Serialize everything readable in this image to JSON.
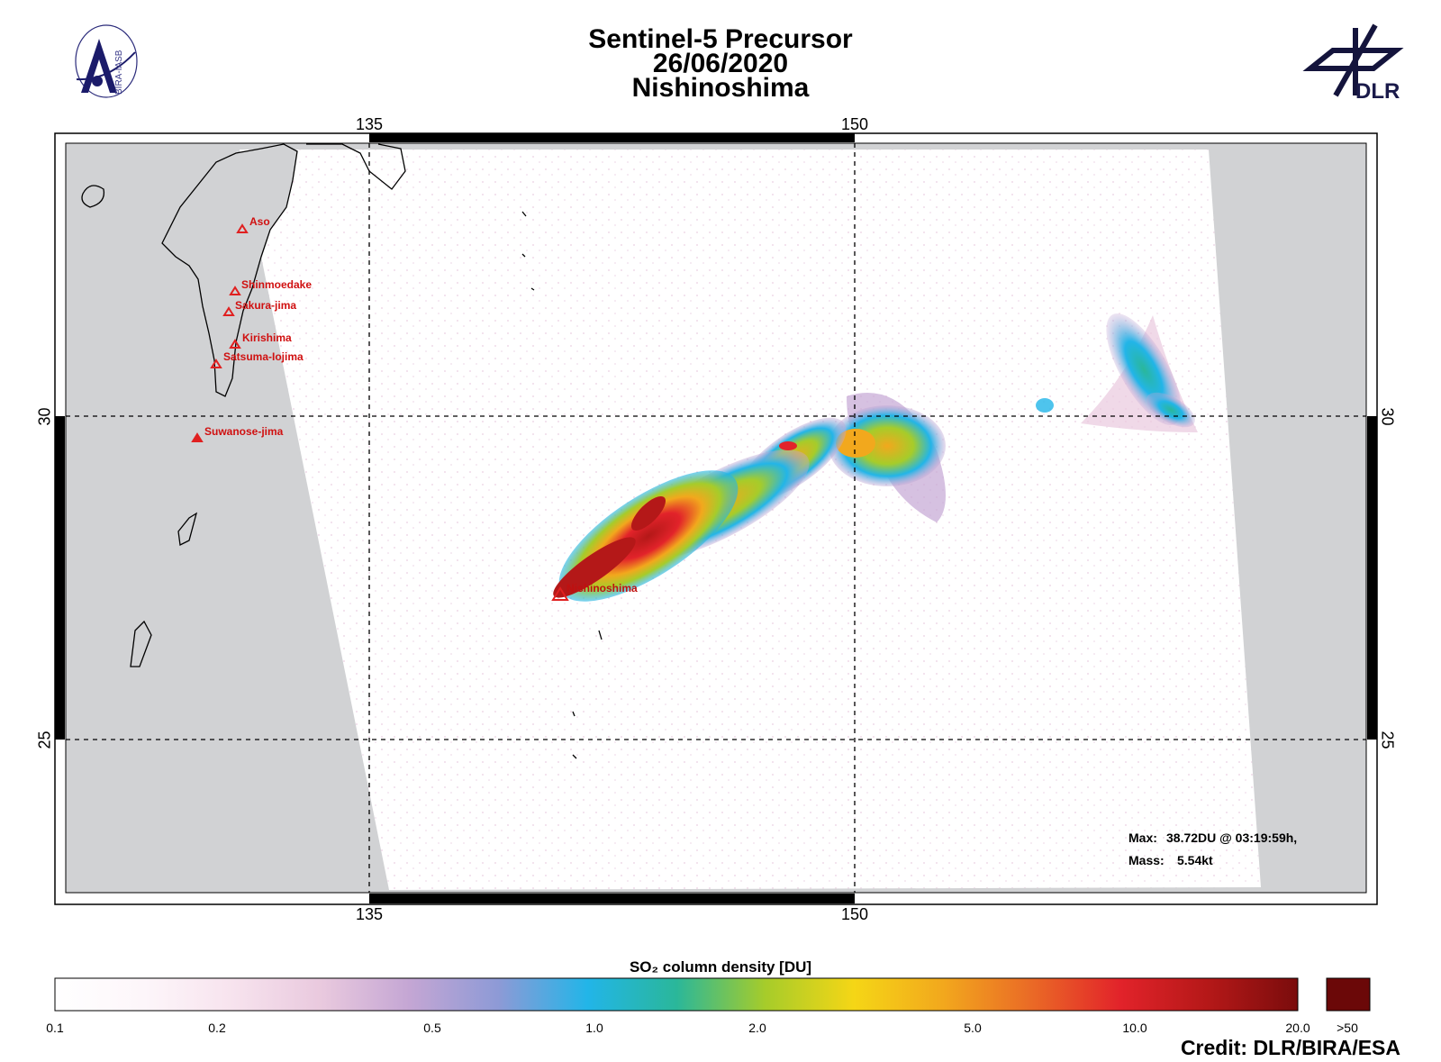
{
  "header": {
    "line1": "Sentinel-5 Precursor",
    "line2": "26/06/2020",
    "line3": "Nishinoshima"
  },
  "logos": {
    "left": {
      "name": "bira-iasb-logo",
      "text": "BIRA-IASB"
    },
    "right": {
      "name": "dlr-logo",
      "text": "DLR"
    }
  },
  "map": {
    "lon_ticks": [
      "135",
      "150"
    ],
    "lat_ticks": [
      "30",
      "25"
    ],
    "colors": {
      "land": "#d1d2d4",
      "frame": "#000000",
      "volcano": "#e02020"
    }
  },
  "volcanoes": [
    {
      "name": "Aso"
    },
    {
      "name": "Shinmoedake"
    },
    {
      "name": "Sakura-jima"
    },
    {
      "name": "Kirishima"
    },
    {
      "name": "Satsuma-Iojima"
    },
    {
      "name": "Suwanose-jima"
    },
    {
      "name": "Nishinoshima"
    }
  ],
  "stats": {
    "max_label": "Max:",
    "max_value": "38.72DU @ 03:19:59h,",
    "mass_label": "Mass:",
    "mass_value": "5.54kt"
  },
  "colorbar": {
    "title": "SO₂ column density [DU]",
    "ticks": [
      "0.1",
      "0.2",
      "0.5",
      "1.0",
      "2.0",
      "5.0",
      "10.0",
      "20.0",
      ">50"
    ],
    "stops": [
      "#ffffff",
      "#fdf6fa",
      "#f7e3ee",
      "#e9c9de",
      "#c4a6d4",
      "#8d9ad6",
      "#22b5e8",
      "#2ab79a",
      "#a6cc2a",
      "#f5d616",
      "#f2a81d",
      "#ea6a26",
      "#e2232a",
      "#b41818",
      "#7a0c0c"
    ],
    "over_color": "#6b0808"
  },
  "credit": "Credit: DLR/BIRA/ESA"
}
